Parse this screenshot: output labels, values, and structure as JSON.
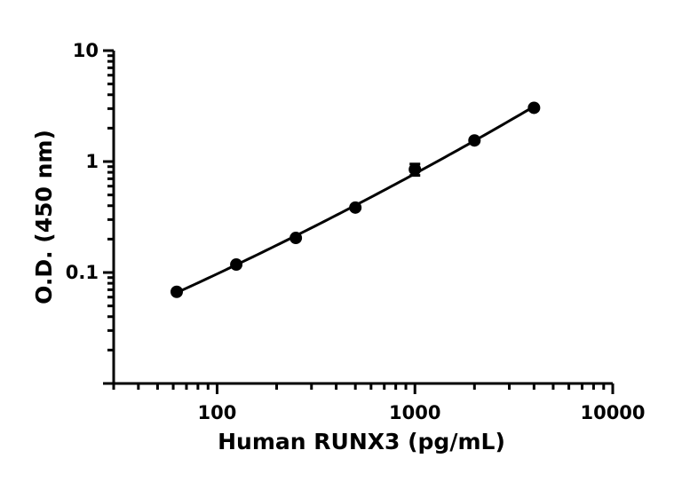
{
  "chart_data": {
    "type": "scatter",
    "xlabel": "Human RUNX3 (pg/mL)",
    "ylabel": "O.D. (450 nm)",
    "xscale": "log",
    "yscale": "log",
    "xlim": [
      30,
      10000
    ],
    "ylim": [
      0.01,
      10
    ],
    "xticks": [
      {
        "value": 100,
        "label": "100"
      },
      {
        "value": 1000,
        "label": "1000"
      },
      {
        "value": 10000,
        "label": "10000"
      }
    ],
    "yticks": [
      {
        "value": 0.1,
        "label": "0.1"
      },
      {
        "value": 1,
        "label": "1"
      },
      {
        "value": 10,
        "label": "10"
      }
    ],
    "grid": false,
    "legend": "none",
    "color": "#000000",
    "series": [
      {
        "points": [
          {
            "x": 62.5,
            "y": 0.067,
            "err": 0.003
          },
          {
            "x": 125,
            "y": 0.118,
            "err": 0.003
          },
          {
            "x": 250,
            "y": 0.205,
            "err": 0.005
          },
          {
            "x": 500,
            "y": 0.385,
            "err": 0.01
          },
          {
            "x": 1000,
            "y": 0.85,
            "err": 0.1
          },
          {
            "x": 2000,
            "y": 1.55,
            "err": 0.04
          },
          {
            "x": 4000,
            "y": 3.05,
            "err": 0.06
          }
        ],
        "fit": "curve"
      }
    ]
  }
}
